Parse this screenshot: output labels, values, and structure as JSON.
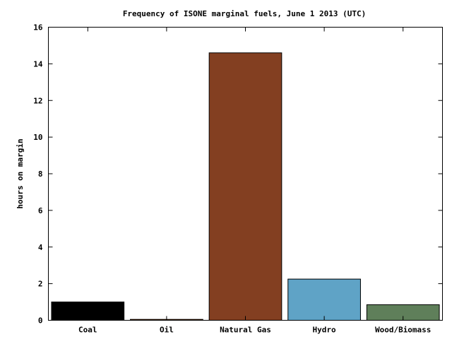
{
  "chart_data": {
    "type": "bar",
    "title": "Frequency of ISONE marginal fuels, June 1 2013 (UTC)",
    "xlabel": "",
    "ylabel": "hours on margin",
    "categories": [
      "Coal",
      "Oil",
      "Natural Gas",
      "Hydro",
      "Wood/Biomass"
    ],
    "values": [
      1.0,
      0.05,
      14.6,
      2.25,
      0.85
    ],
    "colors": [
      "#000000",
      "#8b4513",
      "#833f21",
      "#5fa3c6",
      "#5f7f5a"
    ],
    "ylim": [
      0,
      16
    ],
    "yticks": [
      "0",
      "2",
      "4",
      "6",
      "8",
      "10",
      "12",
      "14",
      "16"
    ],
    "grid": false,
    "legend": "none"
  }
}
